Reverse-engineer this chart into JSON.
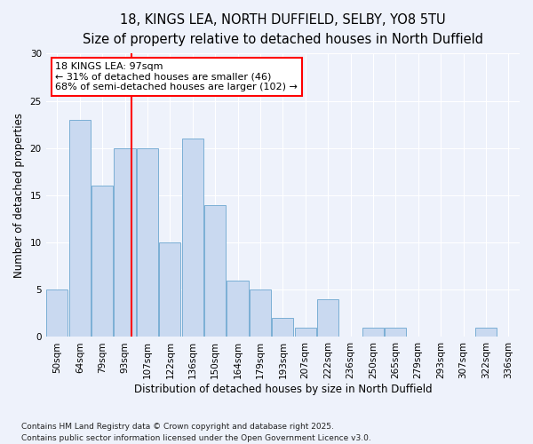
{
  "title1": "18, KINGS LEA, NORTH DUFFIELD, SELBY, YO8 5TU",
  "title2": "Size of property relative to detached houses in North Duffield",
  "xlabel": "Distribution of detached houses by size in North Duffield",
  "ylabel": "Number of detached properties",
  "categories": [
    "50sqm",
    "64sqm",
    "79sqm",
    "93sqm",
    "107sqm",
    "122sqm",
    "136sqm",
    "150sqm",
    "164sqm",
    "179sqm",
    "193sqm",
    "207sqm",
    "222sqm",
    "236sqm",
    "250sqm",
    "265sqm",
    "279sqm",
    "293sqm",
    "307sqm",
    "322sqm",
    "336sqm"
  ],
  "values": [
    5,
    23,
    16,
    20,
    20,
    10,
    21,
    14,
    6,
    5,
    2,
    1,
    4,
    0,
    1,
    1,
    0,
    0,
    0,
    1,
    0
  ],
  "bar_color": "#c9d9f0",
  "bar_edge_color": "#7bafd4",
  "annotation_line1": "18 KINGS LEA: 97sqm",
  "annotation_line2": "← 31% of detached houses are smaller (46)",
  "annotation_line3": "68% of semi-detached houses are larger (102) →",
  "annotation_box_color": "white",
  "annotation_box_edge": "red",
  "vline_color": "red",
  "vline_x": 3.29,
  "ylim": [
    0,
    30
  ],
  "yticks": [
    0,
    5,
    10,
    15,
    20,
    25,
    30
  ],
  "background_color": "#eef2fb",
  "grid_color": "white",
  "footer": "Contains HM Land Registry data © Crown copyright and database right 2025.\nContains public sector information licensed under the Open Government Licence v3.0.",
  "title_fontsize": 10.5,
  "subtitle_fontsize": 9.5,
  "xlabel_fontsize": 8.5,
  "ylabel_fontsize": 8.5,
  "tick_fontsize": 7.5,
  "annotation_fontsize": 8,
  "footer_fontsize": 6.5
}
